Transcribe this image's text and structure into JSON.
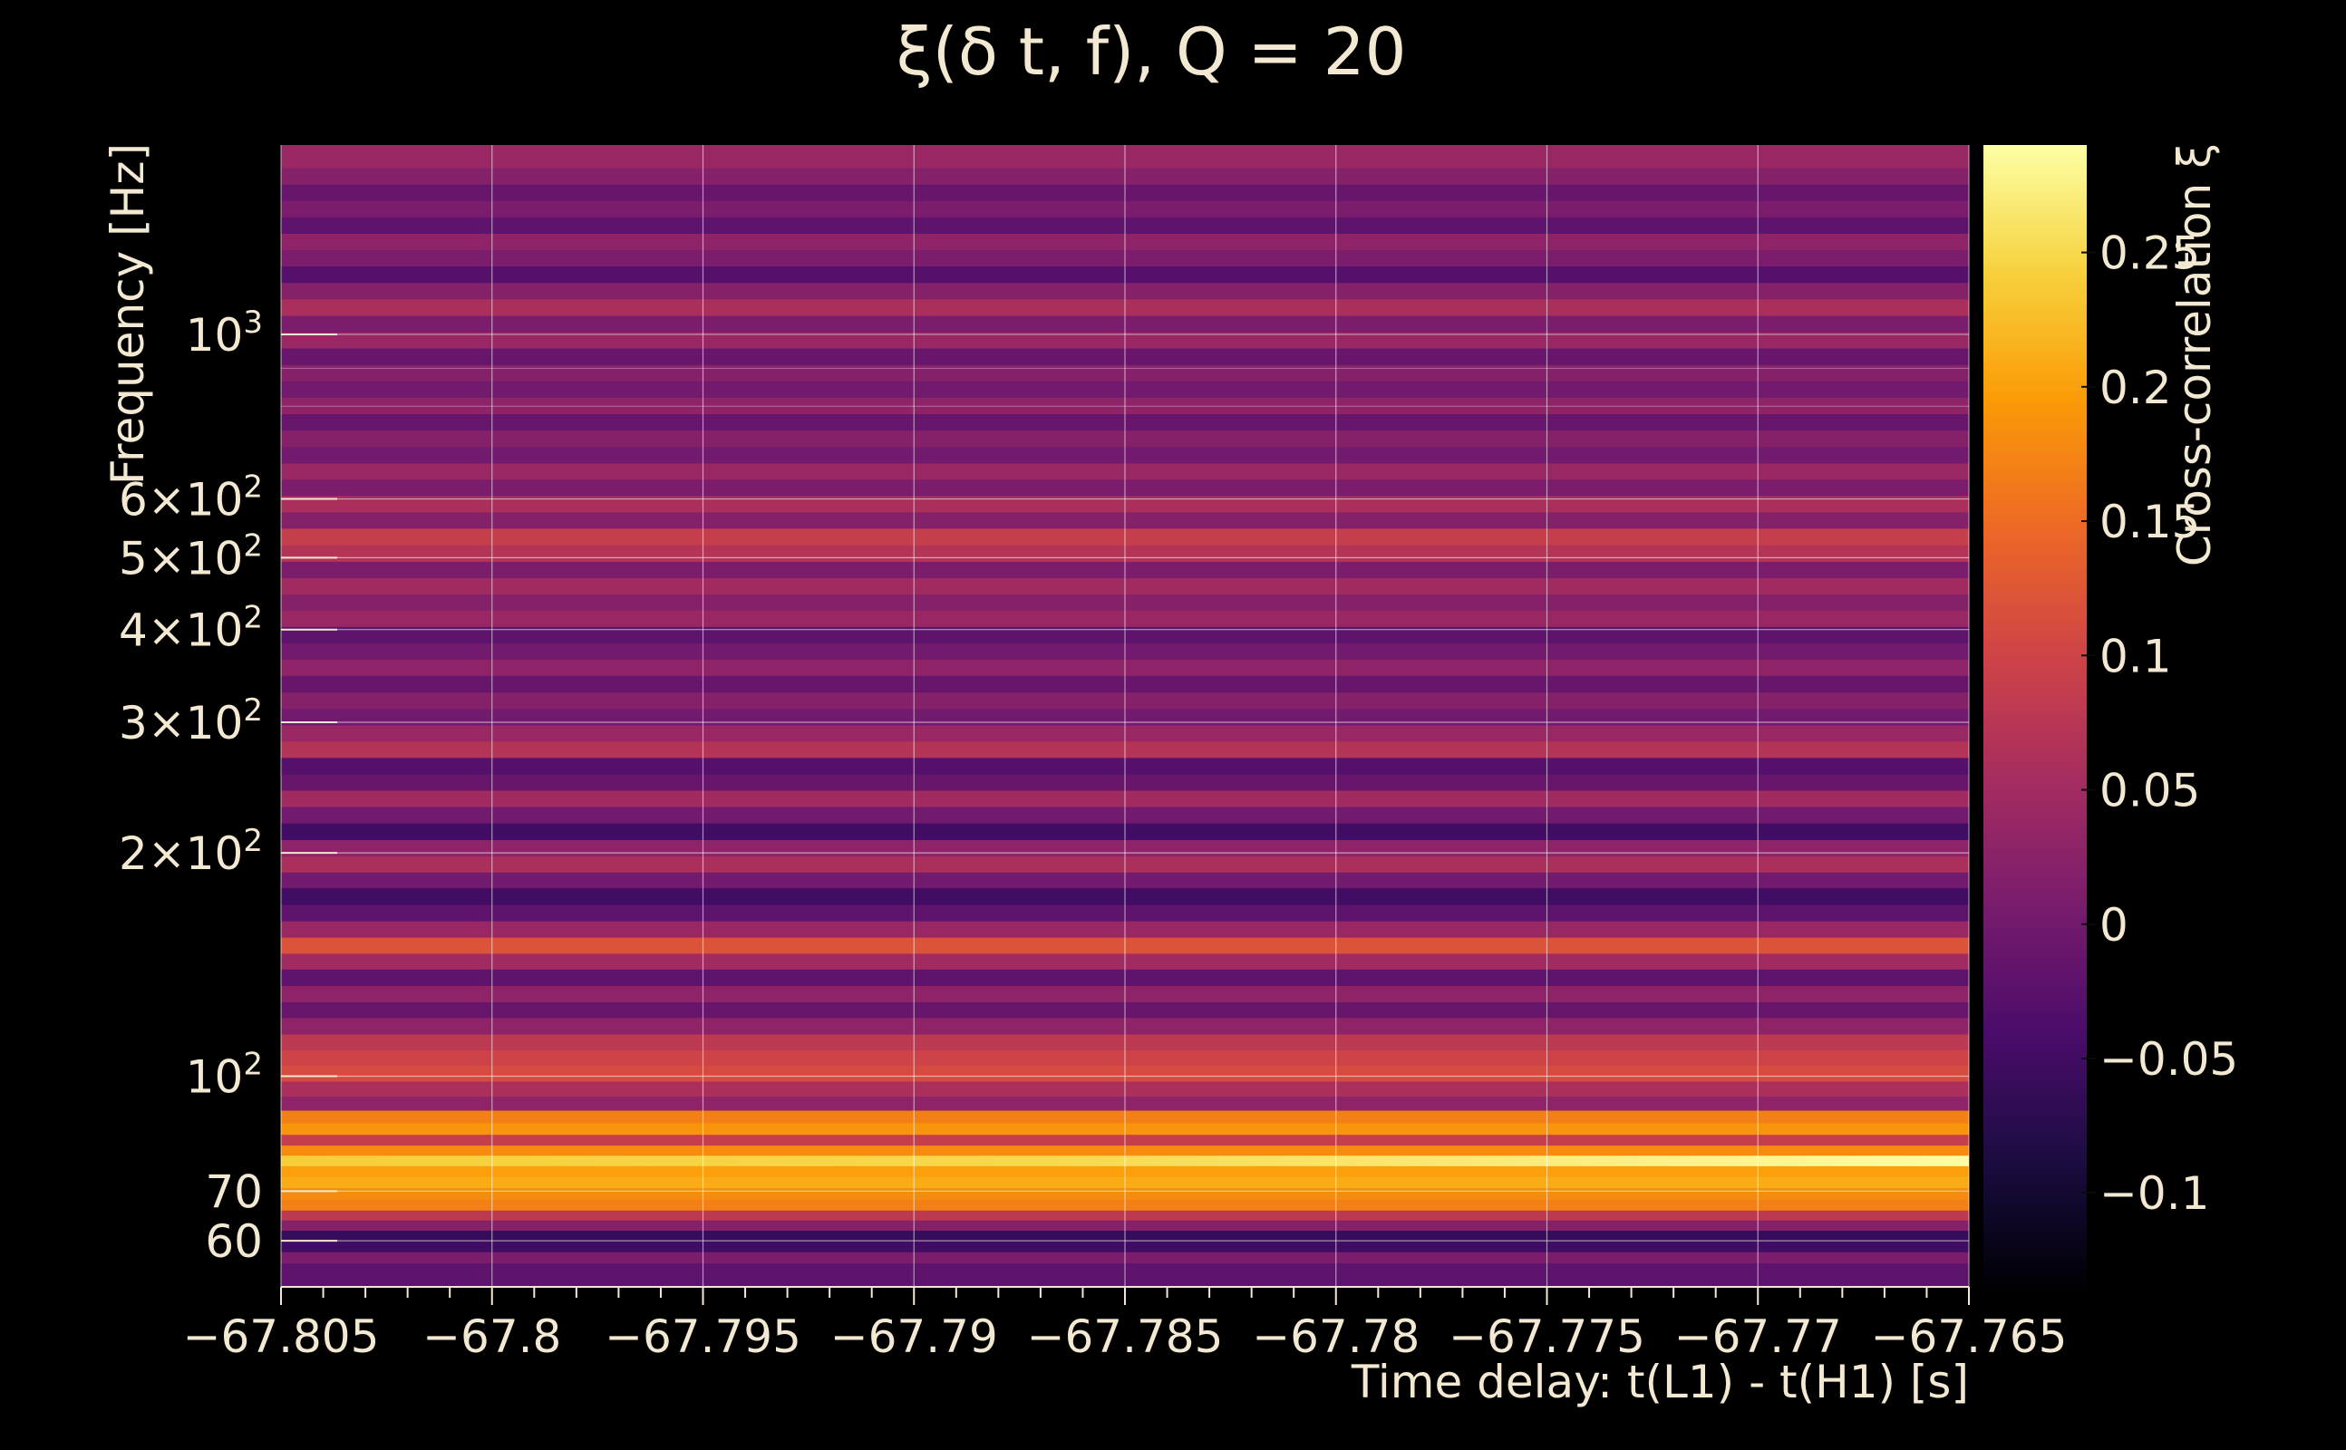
{
  "chart_data": {
    "type": "heatmap",
    "title": "ξ(δ t, f), Q = 20",
    "xlabel": "Time delay: t(L1) - t(H1) [s]",
    "ylabel": "Frequency [Hz]",
    "colorbar_label": "Cross-correlation ξ",
    "xlim": [
      -67.805,
      -67.765
    ],
    "ylim": [
      52,
      1800
    ],
    "yscale": "log",
    "clim": [
      -0.135,
      0.29
    ],
    "grid": true,
    "x_ticks": [
      {
        "value": -67.805,
        "label": "−67.805"
      },
      {
        "value": -67.8,
        "label": "−67.8"
      },
      {
        "value": -67.795,
        "label": "−67.795"
      },
      {
        "value": -67.79,
        "label": "−67.79"
      },
      {
        "value": -67.785,
        "label": "−67.785"
      },
      {
        "value": -67.78,
        "label": "−67.78"
      },
      {
        "value": -67.775,
        "label": "−67.775"
      },
      {
        "value": -67.77,
        "label": "−67.77"
      },
      {
        "value": -67.765,
        "label": "−67.765"
      }
    ],
    "y_ticks": [
      {
        "value": 60,
        "mantissa": "60",
        "exp": ""
      },
      {
        "value": 70,
        "mantissa": "70",
        "exp": ""
      },
      {
        "value": 100,
        "mantissa": "10",
        "exp": "2"
      },
      {
        "value": 200,
        "mantissa": "2×10",
        "exp": "2"
      },
      {
        "value": 300,
        "mantissa": "3×10",
        "exp": "2"
      },
      {
        "value": 400,
        "mantissa": "4×10",
        "exp": "2"
      },
      {
        "value": 500,
        "mantissa": "5×10",
        "exp": "2"
      },
      {
        "value": 600,
        "mantissa": "6×10",
        "exp": "2"
      },
      {
        "value": 1000,
        "mantissa": "10",
        "exp": "3"
      }
    ],
    "colorbar_ticks": [
      {
        "value": -0.1,
        "label": "−0.1"
      },
      {
        "value": -0.05,
        "label": "−0.05"
      },
      {
        "value": 0,
        "label": "0"
      },
      {
        "value": 0.05,
        "label": "0.05"
      },
      {
        "value": 0.1,
        "label": "0.1"
      },
      {
        "value": 0.15,
        "label": "0.15"
      },
      {
        "value": 0.2,
        "label": "0.2"
      },
      {
        "value": 0.25,
        "label": "0.25"
      }
    ],
    "colormap": [
      "#000004",
      "#1b0c41",
      "#4a0c6b",
      "#781c6d",
      "#a52c60",
      "#cf4446",
      "#ed6925",
      "#fb9b06",
      "#f7d13d",
      "#fcffa4"
    ],
    "bands": [
      {
        "f": 55,
        "value": -0.02
      },
      {
        "f": 57,
        "value": 0.01
      },
      {
        "f": 59,
        "value": -0.05
      },
      {
        "f": 61,
        "value": -0.06
      },
      {
        "f": 63,
        "value": 0.02
      },
      {
        "f": 65,
        "value": 0.08
      },
      {
        "f": 67,
        "value": 0.17
      },
      {
        "f": 69.5,
        "value": 0.18
      },
      {
        "f": 72,
        "value": 0.21
      },
      {
        "f": 74.5,
        "value": 0.2
      },
      {
        "f": 77,
        "value": 0.24,
        "value_end": 0.29
      },
      {
        "f": 79.5,
        "value": 0.18
      },
      {
        "f": 82,
        "value": 0.09
      },
      {
        "f": 85,
        "value": 0.19
      },
      {
        "f": 88,
        "value": 0.17
      },
      {
        "f": 92,
        "value": 0.03
      },
      {
        "f": 96,
        "value": 0.06
      },
      {
        "f": 101,
        "value": 0.11
      },
      {
        "f": 106,
        "value": 0.1
      },
      {
        "f": 111,
        "value": 0.08
      },
      {
        "f": 117,
        "value": 0.03
      },
      {
        "f": 123,
        "value": -0.01
      },
      {
        "f": 129,
        "value": 0.03
      },
      {
        "f": 136,
        "value": -0.02
      },
      {
        "f": 143,
        "value": 0.05
      },
      {
        "f": 150,
        "value": 0.12
      },
      {
        "f": 158,
        "value": 0.04
      },
      {
        "f": 166,
        "value": -0.02
      },
      {
        "f": 175,
        "value": -0.05
      },
      {
        "f": 184,
        "value": 0.0
      },
      {
        "f": 193,
        "value": 0.06
      },
      {
        "f": 203,
        "value": 0.03
      },
      {
        "f": 214,
        "value": -0.05
      },
      {
        "f": 225,
        "value": 0.0
      },
      {
        "f": 237,
        "value": 0.05
      },
      {
        "f": 249,
        "value": -0.01
      },
      {
        "f": 262,
        "value": -0.03
      },
      {
        "f": 276,
        "value": 0.07
      },
      {
        "f": 290,
        "value": 0.04
      },
      {
        "f": 305,
        "value": 0.0
      },
      {
        "f": 321,
        "value": 0.02
      },
      {
        "f": 338,
        "value": -0.01
      },
      {
        "f": 356,
        "value": 0.03
      },
      {
        "f": 374,
        "value": 0.0
      },
      {
        "f": 394,
        "value": -0.02
      },
      {
        "f": 414,
        "value": 0.04
      },
      {
        "f": 436,
        "value": 0.02
      },
      {
        "f": 458,
        "value": 0.05
      },
      {
        "f": 482,
        "value": 0.01
      },
      {
        "f": 507,
        "value": 0.07
      },
      {
        "f": 534,
        "value": 0.09
      },
      {
        "f": 562,
        "value": 0.02
      },
      {
        "f": 591,
        "value": 0.06
      },
      {
        "f": 622,
        "value": 0.01
      },
      {
        "f": 654,
        "value": 0.04
      },
      {
        "f": 688,
        "value": 0.0
      },
      {
        "f": 724,
        "value": 0.02
      },
      {
        "f": 762,
        "value": -0.01
      },
      {
        "f": 802,
        "value": 0.03
      },
      {
        "f": 844,
        "value": 0.0
      },
      {
        "f": 888,
        "value": 0.02
      },
      {
        "f": 934,
        "value": -0.01
      },
      {
        "f": 983,
        "value": 0.04
      },
      {
        "f": 1034,
        "value": 0.01
      },
      {
        "f": 1088,
        "value": 0.06
      },
      {
        "f": 1145,
        "value": 0.02
      },
      {
        "f": 1205,
        "value": -0.03
      },
      {
        "f": 1268,
        "value": 0.01
      },
      {
        "f": 1334,
        "value": 0.03
      },
      {
        "f": 1404,
        "value": -0.02
      },
      {
        "f": 1477,
        "value": 0.01
      },
      {
        "f": 1554,
        "value": -0.01
      },
      {
        "f": 1635,
        "value": 0.02
      },
      {
        "f": 1720,
        "value": 0.04
      }
    ]
  }
}
